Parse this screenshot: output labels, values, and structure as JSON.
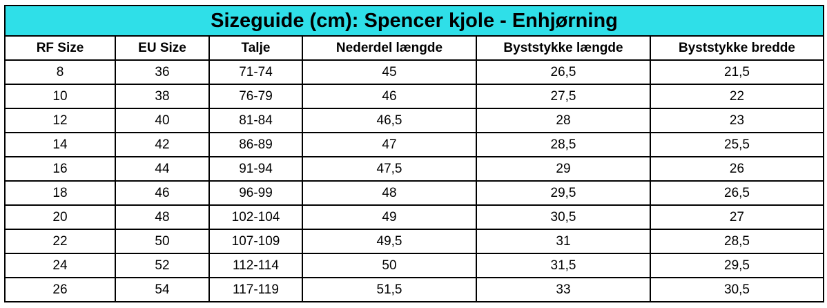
{
  "table": {
    "title": "Sizeguide (cm): Spencer kjole - Enhjørning",
    "header": [
      "RF Size",
      "EU Size",
      "Talje",
      "Nederdel længde",
      "Byststykke længde",
      "Byststykke bredde"
    ],
    "rows": [
      [
        "8",
        "36",
        "71-74",
        "45",
        "26,5",
        "21,5"
      ],
      [
        "10",
        "38",
        "76-79",
        "46",
        "27,5",
        "22"
      ],
      [
        "12",
        "40",
        "81-84",
        "46,5",
        "28",
        "23"
      ],
      [
        "14",
        "42",
        "86-89",
        "47",
        "28,5",
        "25,5"
      ],
      [
        "16",
        "44",
        "91-94",
        "47,5",
        "29",
        "26"
      ],
      [
        "18",
        "46",
        "96-99",
        "48",
        "29,5",
        "26,5"
      ],
      [
        "20",
        "48",
        "102-104",
        "49",
        "30,5",
        "27"
      ],
      [
        "22",
        "50",
        "107-109",
        "49,5",
        "31",
        "28,5"
      ],
      [
        "24",
        "52",
        "112-114",
        "50",
        "31,5",
        "29,5"
      ],
      [
        "26",
        "54",
        "117-119",
        "51,5",
        "33",
        "30,5"
      ]
    ]
  }
}
